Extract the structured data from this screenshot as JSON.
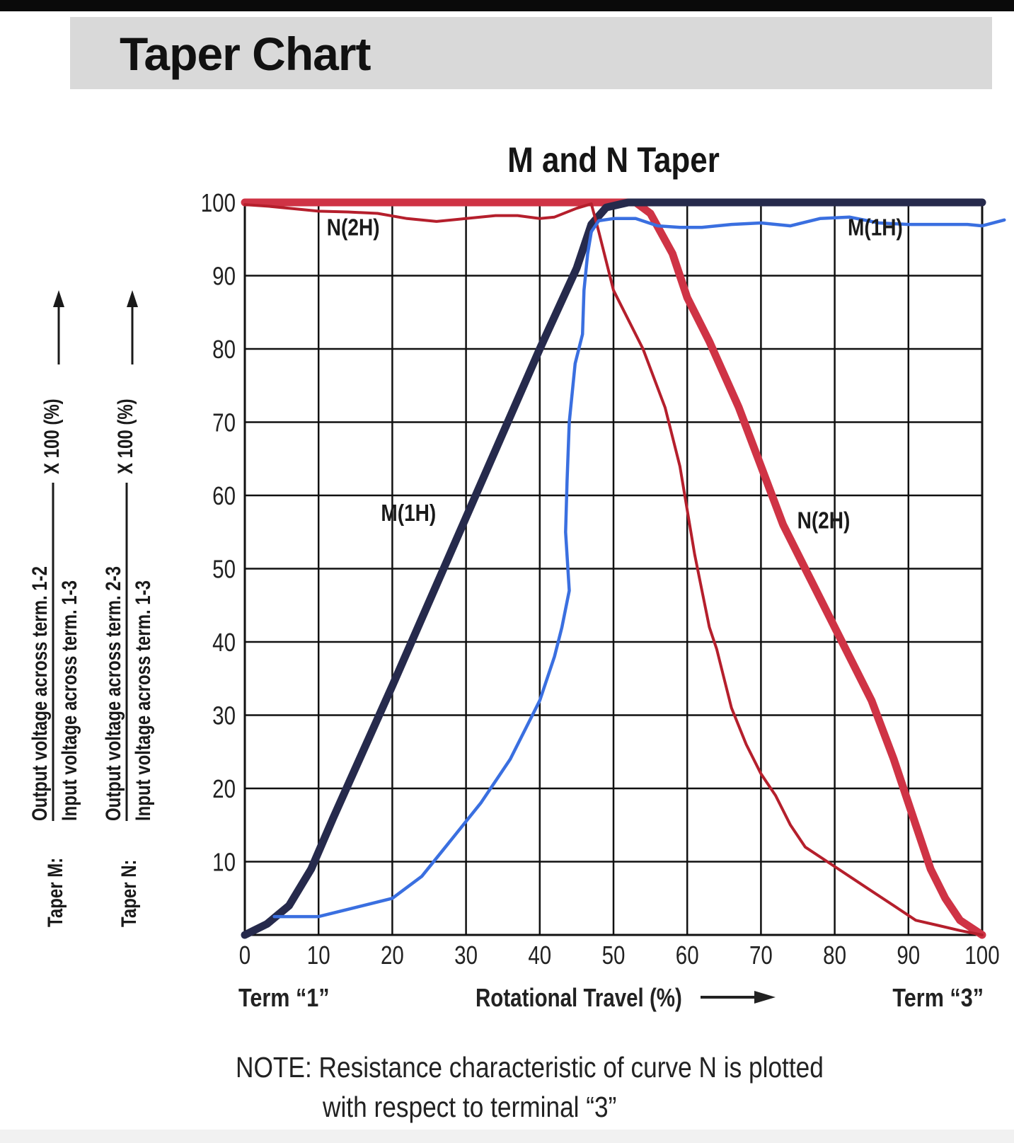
{
  "page_title": "Taper Chart",
  "chart_data": {
    "type": "line",
    "title": "M and N Taper",
    "xlim": [
      0,
      100
    ],
    "ylim": [
      0,
      100
    ],
    "x_ticks": [
      "0",
      "10",
      "20",
      "30",
      "40",
      "50",
      "60",
      "70",
      "80",
      "90",
      "100"
    ],
    "y_ticks": [
      "10",
      "20",
      "30",
      "40",
      "50",
      "60",
      "70",
      "80",
      "90",
      "100"
    ],
    "grid": true,
    "x_bottom_labels": {
      "left": "Term “1”",
      "center": "Rotational Travel (%)",
      "right": "Term “3”"
    },
    "y_axis_labels": [
      {
        "prefix": "Taper M:",
        "numerator": "Output voltage across term. 1-2",
        "denominator": "Input voltage across term. 1-3",
        "multiplier": "X 100 (%)"
      },
      {
        "prefix": "Taper N:",
        "numerator": "Output voltage across term. 2-3",
        "denominator": "Input voltage across term. 1-3",
        "multiplier": "X 100 (%)"
      }
    ],
    "annotations": [
      {
        "text": "N(2H)",
        "x": 14.7,
        "y": 95.5
      },
      {
        "text": "M(1H)",
        "x": 85.5,
        "y": 95.5
      },
      {
        "text": "M(1H)",
        "x": 22.2,
        "y": 56.5
      },
      {
        "text": "N(2H)",
        "x": 78.5,
        "y": 55.5
      }
    ],
    "series": [
      {
        "color": "#262a4c",
        "points": [
          [
            0,
            0
          ],
          [
            3,
            1.5
          ],
          [
            6,
            4
          ],
          [
            9,
            9
          ],
          [
            12,
            16
          ],
          [
            20,
            34
          ],
          [
            30,
            57
          ],
          [
            40,
            80
          ],
          [
            45,
            91
          ],
          [
            47,
            97
          ],
          [
            49,
            99.3
          ],
          [
            52,
            100
          ],
          [
            100,
            100
          ]
        ]
      },
      {
        "color": "#3a6fe0",
        "points": [
          [
            4,
            2.5
          ],
          [
            8,
            2.5
          ],
          [
            10,
            2.5
          ],
          [
            14,
            3.5
          ],
          [
            20,
            5
          ],
          [
            24,
            8
          ],
          [
            28,
            13
          ],
          [
            32,
            18
          ],
          [
            36,
            24
          ],
          [
            40,
            32
          ],
          [
            42,
            38
          ],
          [
            43,
            42
          ],
          [
            44,
            47
          ],
          [
            43.5,
            55
          ],
          [
            43.7,
            62
          ],
          [
            44,
            70
          ],
          [
            44.8,
            78
          ],
          [
            45.8,
            82
          ],
          [
            46,
            88
          ],
          [
            46.5,
            93
          ],
          [
            47,
            96
          ],
          [
            48,
            97.5
          ],
          [
            50,
            97.8
          ],
          [
            53,
            97.8
          ],
          [
            56,
            96.8
          ],
          [
            59,
            96.6
          ],
          [
            62,
            96.6
          ],
          [
            66,
            97
          ],
          [
            70,
            97.2
          ],
          [
            74,
            96.8
          ],
          [
            78,
            97.8
          ],
          [
            82,
            98
          ],
          [
            86,
            97.2
          ],
          [
            90,
            97
          ],
          [
            94,
            97
          ],
          [
            98,
            97
          ],
          [
            100,
            96.8
          ],
          [
            103,
            97.6
          ]
        ]
      },
      {
        "color": "#cf3345",
        "points": [
          [
            0,
            100
          ],
          [
            53,
            100
          ],
          [
            55,
            98.5
          ],
          [
            58,
            93
          ],
          [
            60,
            87
          ],
          [
            63,
            81
          ],
          [
            67,
            72
          ],
          [
            70,
            64
          ],
          [
            73,
            56
          ],
          [
            76,
            50
          ],
          [
            80,
            42
          ],
          [
            85,
            32
          ],
          [
            88,
            24
          ],
          [
            91,
            15
          ],
          [
            93,
            9
          ],
          [
            95,
            5
          ],
          [
            97,
            2
          ],
          [
            100,
            0
          ]
        ]
      },
      {
        "color": "#b51f2c",
        "points": [
          [
            0,
            99.7
          ],
          [
            3,
            99.5
          ],
          [
            6,
            99.2
          ],
          [
            10,
            98.8
          ],
          [
            14,
            98.7
          ],
          [
            18,
            98.5
          ],
          [
            22,
            97.8
          ],
          [
            26,
            97.4
          ],
          [
            30,
            97.8
          ],
          [
            34,
            98.2
          ],
          [
            37,
            98.2
          ],
          [
            40,
            97.8
          ],
          [
            42,
            98
          ],
          [
            45,
            99.2
          ],
          [
            47,
            99.8
          ],
          [
            48,
            96
          ],
          [
            50,
            88
          ],
          [
            54,
            80
          ],
          [
            57,
            72
          ],
          [
            59,
            64
          ],
          [
            60,
            58
          ],
          [
            61,
            52
          ],
          [
            62,
            47
          ],
          [
            63,
            42
          ],
          [
            64,
            39
          ],
          [
            65,
            35
          ],
          [
            66,
            31
          ],
          [
            68,
            26
          ],
          [
            70,
            22
          ],
          [
            72,
            19
          ],
          [
            74,
            15
          ],
          [
            76,
            12
          ],
          [
            79,
            10
          ],
          [
            82,
            8
          ],
          [
            85,
            6
          ],
          [
            88,
            4
          ],
          [
            91,
            2
          ],
          [
            94,
            1.3
          ],
          [
            97,
            0.6
          ],
          [
            100,
            0
          ]
        ]
      }
    ]
  },
  "note": {
    "line1": "NOTE: Resistance characteristic of curve N is plotted",
    "line2": "with respect to terminal “3”"
  }
}
